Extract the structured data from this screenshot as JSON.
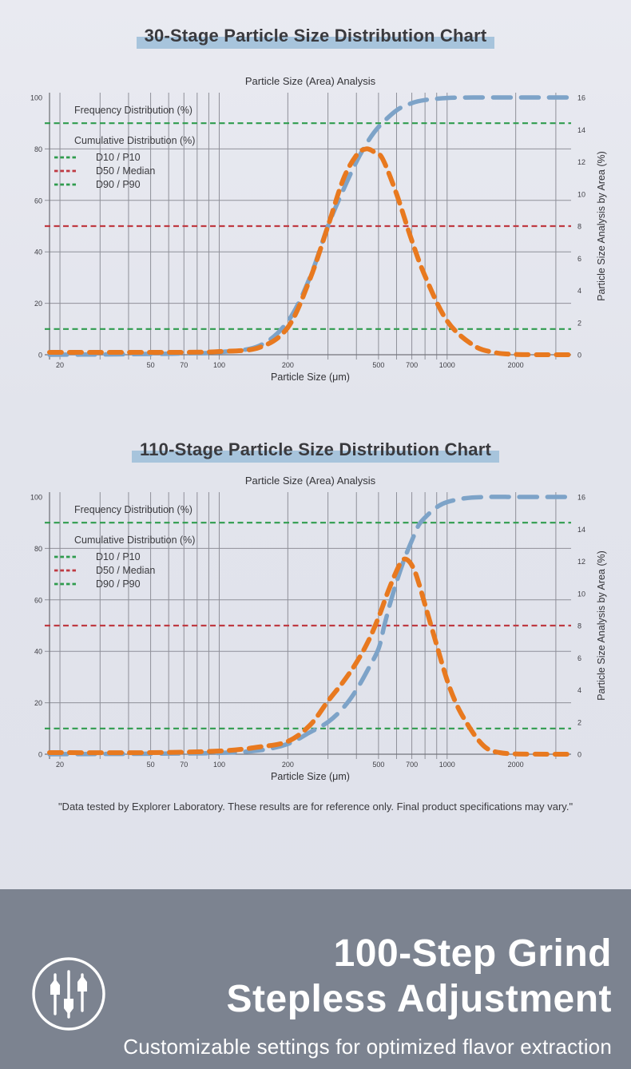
{
  "page": {
    "background_color": "#e2e4ec",
    "title_highlight_color": "#a7c4dc"
  },
  "chart_data": [
    {
      "id": "chart-30-stage",
      "type": "line",
      "title": "30-Stage Particle Size Distribution Chart",
      "subtitle": "Particle Size (Area) Analysis",
      "x_axis": {
        "label": "Particle Size (μm)",
        "scale": "log",
        "domain_um": [
          18,
          3500
        ],
        "gridlines": [
          20,
          30,
          40,
          50,
          60,
          70,
          80,
          90,
          100,
          200,
          300,
          400,
          500,
          600,
          700,
          800,
          900,
          1000,
          2000,
          3000
        ],
        "labeled_ticks": [
          20,
          50,
          70,
          100,
          200,
          500,
          700,
          1000,
          2000
        ]
      },
      "y_left": {
        "ticks": [
          0,
          20,
          40,
          60,
          80,
          100
        ],
        "gridlines": [
          20,
          40,
          60,
          80
        ],
        "max": 100
      },
      "y_right": {
        "label": "Particle Size Analysis by Area (%)",
        "ticks": [
          0,
          2,
          4,
          6,
          8,
          10,
          12,
          14,
          16
        ],
        "max": 16
      },
      "legend": {
        "headers": [
          "Frequency Distribution (%)",
          "Cumulative Distribution (%)"
        ],
        "items": [
          {
            "label": "D10 / P10",
            "color": "#2f9c4e"
          },
          {
            "label": "D50 / Median",
            "color": "#bf3a42"
          },
          {
            "label": "D90 / P90",
            "color": "#2f9c4e"
          }
        ]
      },
      "reference_lines": [
        {
          "name": "D90 / P90",
          "value_left_axis": 90,
          "color": "#2f9c4e"
        },
        {
          "name": "D50 / Median",
          "value_left_axis": 50,
          "color": "#bf3a42"
        },
        {
          "name": "D10 / P10",
          "value_left_axis": 10,
          "color": "#2f9c4e"
        }
      ],
      "stats": {
        "D10_um": 170,
        "D50_um": 300,
        "D90_um": 500,
        "peak_um": 440,
        "peak_area_pct": 12.8
      },
      "series": [
        {
          "name": "Cumulative Distribution (%)",
          "axis": "left",
          "color": "#7da3c8",
          "dash": "22 13",
          "width": 5.5,
          "points": [
            [
              18,
              0
            ],
            [
              30,
              0.1
            ],
            [
              50,
              0.3
            ],
            [
              70,
              0.5
            ],
            [
              100,
              1
            ],
            [
              150,
              3.5
            ],
            [
              200,
              13
            ],
            [
              250,
              30
            ],
            [
              300,
              50
            ],
            [
              350,
              64
            ],
            [
              400,
              75
            ],
            [
              450,
              83
            ],
            [
              500,
              88.5
            ],
            [
              600,
              95
            ],
            [
              700,
              97.8
            ],
            [
              800,
              99
            ],
            [
              1000,
              99.8
            ],
            [
              1300,
              100
            ],
            [
              1700,
              100
            ],
            [
              2200,
              100
            ],
            [
              2800,
              100
            ],
            [
              3500,
              100
            ]
          ]
        },
        {
          "name": "Frequency Distribution (%)",
          "axis": "right",
          "color": "#e8791f",
          "dash": "15 10",
          "width": 6,
          "points": [
            [
              18,
              0.15
            ],
            [
              30,
              0.15
            ],
            [
              50,
              0.15
            ],
            [
              70,
              0.15
            ],
            [
              100,
              0.2
            ],
            [
              150,
              0.45
            ],
            [
              200,
              1.7
            ],
            [
              250,
              4.7
            ],
            [
              300,
              8
            ],
            [
              350,
              10.9
            ],
            [
              400,
              12.4
            ],
            [
              440,
              12.8
            ],
            [
              480,
              12.6
            ],
            [
              520,
              12.2
            ],
            [
              600,
              10
            ],
            [
              700,
              7.1
            ],
            [
              800,
              4.9
            ],
            [
              1000,
              2.1
            ],
            [
              1300,
              0.6
            ],
            [
              1600,
              0.15
            ],
            [
              2000,
              0.02
            ],
            [
              2800,
              0
            ],
            [
              3500,
              0
            ]
          ]
        }
      ]
    },
    {
      "id": "chart-110-stage",
      "type": "line",
      "title": "110-Stage Particle Size Distribution Chart",
      "subtitle": "Particle Size (Area) Analysis",
      "x_axis": {
        "label": "Particle Size (μm)",
        "scale": "log",
        "domain_um": [
          18,
          3500
        ],
        "gridlines": [
          20,
          30,
          40,
          50,
          60,
          70,
          80,
          90,
          100,
          200,
          300,
          400,
          500,
          600,
          700,
          800,
          900,
          1000,
          2000,
          3000
        ],
        "labeled_ticks": [
          20,
          50,
          70,
          100,
          200,
          500,
          700,
          1000,
          2000
        ]
      },
      "y_left": {
        "ticks": [
          0,
          20,
          40,
          60,
          80,
          100
        ],
        "gridlines": [
          20,
          40,
          60,
          80
        ],
        "max": 100
      },
      "y_right": {
        "label": "Particle Size Analysis by Area (%)",
        "ticks": [
          0,
          2,
          4,
          6,
          8,
          10,
          12,
          14,
          16
        ],
        "max": 16
      },
      "legend": {
        "headers": [
          "Frequency Distribution (%)",
          "Cumulative Distribution (%)"
        ],
        "items": [
          {
            "label": "D10 / P10",
            "color": "#2f9c4e"
          },
          {
            "label": "D50 / Median",
            "color": "#bf3a42"
          },
          {
            "label": "D90 / P90",
            "color": "#2f9c4e"
          }
        ]
      },
      "reference_lines": [
        {
          "name": "D90 / P90",
          "value_left_axis": 90,
          "color": "#2f9c4e"
        },
        {
          "name": "D50 / Median",
          "value_left_axis": 50,
          "color": "#bf3a42"
        },
        {
          "name": "D10 / P10",
          "value_left_axis": 10,
          "color": "#2f9c4e"
        }
      ],
      "stats": {
        "D10_um": 240,
        "D50_um": 520,
        "D90_um": 740,
        "peak_um": 640,
        "peak_area_pct": 12.1
      },
      "series": [
        {
          "name": "Cumulative Distribution (%)",
          "axis": "left",
          "color": "#7da3c8",
          "dash": "22 13",
          "width": 5.5,
          "points": [
            [
              18,
              0
            ],
            [
              50,
              0.2
            ],
            [
              100,
              0.5
            ],
            [
              150,
              1.5
            ],
            [
              200,
              4
            ],
            [
              250,
              8.5
            ],
            [
              300,
              12.5
            ],
            [
              350,
              18
            ],
            [
              400,
              25
            ],
            [
              450,
              33
            ],
            [
              500,
              41
            ],
            [
              530,
              50
            ],
            [
              560,
              58
            ],
            [
              600,
              67
            ],
            [
              650,
              76
            ],
            [
              700,
              83
            ],
            [
              750,
              89
            ],
            [
              800,
              92
            ],
            [
              900,
              96
            ],
            [
              1000,
              98
            ],
            [
              1200,
              99.5
            ],
            [
              1500,
              100
            ],
            [
              2000,
              100
            ],
            [
              2800,
              100
            ],
            [
              3500,
              100
            ]
          ]
        },
        {
          "name": "Frequency Distribution (%)",
          "axis": "right",
          "color": "#e8791f",
          "dash": "15 10",
          "width": 6,
          "points": [
            [
              18,
              0.1
            ],
            [
              50,
              0.1
            ],
            [
              100,
              0.2
            ],
            [
              150,
              0.45
            ],
            [
              200,
              0.8
            ],
            [
              250,
              1.8
            ],
            [
              300,
              3.3
            ],
            [
              350,
              4.5
            ],
            [
              400,
              5.7
            ],
            [
              450,
              7
            ],
            [
              500,
              8.5
            ],
            [
              550,
              10.1
            ],
            [
              600,
              11.4
            ],
            [
              640,
              12.1
            ],
            [
              680,
              12
            ],
            [
              720,
              11.4
            ],
            [
              760,
              10.4
            ],
            [
              800,
              9.3
            ],
            [
              900,
              6.8
            ],
            [
              1000,
              4.6
            ],
            [
              1100,
              3.1
            ],
            [
              1200,
              2.1
            ],
            [
              1350,
              1
            ],
            [
              1500,
              0.35
            ],
            [
              1700,
              0.1
            ],
            [
              2000,
              0.02
            ],
            [
              2800,
              0
            ],
            [
              3500,
              0
            ]
          ]
        }
      ]
    }
  ],
  "disclaimer": "\"Data tested by Explorer Laboratory. These results are for reference only. Final product specifications may vary.\"",
  "footer": {
    "icon": "grind-adjustment-sliders-icon",
    "heading_line1": "100-Step Grind",
    "heading_line2": "Stepless Adjustment",
    "subheading": "Customizable settings for optimized flavor extraction",
    "background_color": "#7c8390",
    "text_color": "#ffffff"
  }
}
